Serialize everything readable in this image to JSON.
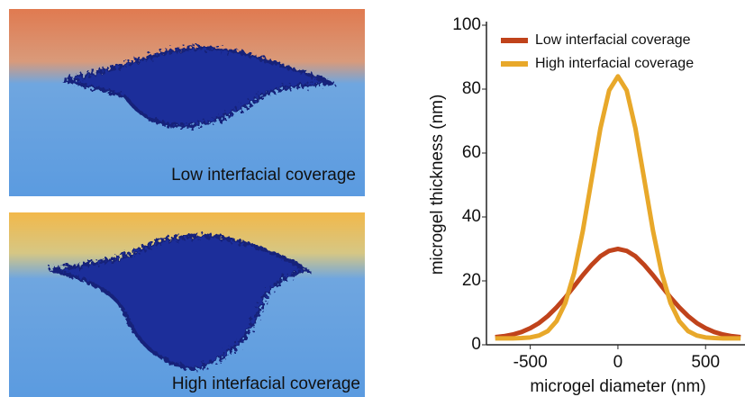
{
  "panels": [
    {
      "caption": "Low interfacial coverage"
    },
    {
      "caption": "High interfacial coverage"
    }
  ],
  "chart_data": {
    "type": "line",
    "xlabel": "microgel diameter (nm)",
    "ylabel": "microgel thickness (nm)",
    "x": [
      -700,
      -650,
      -600,
      -550,
      -500,
      -450,
      -400,
      -350,
      -300,
      -250,
      -200,
      -150,
      -100,
      -50,
      0,
      50,
      100,
      150,
      200,
      250,
      300,
      350,
      400,
      450,
      500,
      550,
      600,
      650,
      700
    ],
    "series": [
      {
        "name": "Low interfacial coverage",
        "color": "#c0431b",
        "values": [
          2.4,
          2.7,
          3.2,
          4.0,
          5.2,
          6.8,
          9.0,
          11.7,
          14.8,
          18.3,
          21.8,
          25.0,
          27.7,
          29.4,
          30,
          29.4,
          27.7,
          25.0,
          21.8,
          18.3,
          14.8,
          11.7,
          9.0,
          6.8,
          5.2,
          4.0,
          3.2,
          2.7,
          2.4
        ]
      },
      {
        "name": "High interfacial coverage",
        "color": "#e8a82a",
        "values": [
          2.0,
          2.0,
          2.0,
          2.1,
          2.3,
          2.9,
          4.3,
          7.4,
          13.1,
          22.4,
          35.7,
          51.8,
          67.7,
          79.6,
          84,
          79.6,
          67.7,
          51.8,
          35.7,
          22.4,
          13.1,
          7.4,
          4.3,
          2.9,
          2.3,
          2.1,
          2.0,
          2.0,
          2.0
        ]
      }
    ],
    "xlim": [
      -750,
      725
    ],
    "ylim": [
      0,
      100
    ],
    "xticks": [
      -500,
      0,
      500
    ],
    "yticks": [
      0,
      20,
      40,
      60,
      80,
      100
    ],
    "legend": "upper left",
    "grid": false
  }
}
